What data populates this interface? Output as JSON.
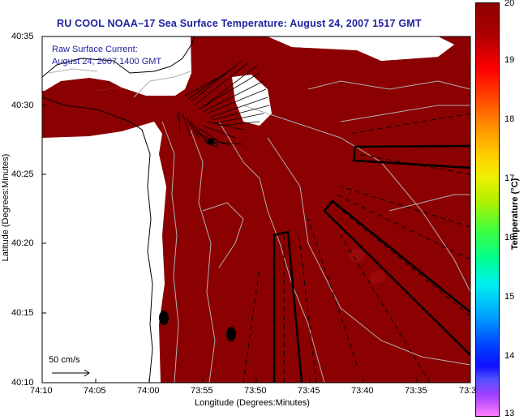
{
  "title": "RU COOL  NOAA–17  Sea Surface Temperature:  August 24, 2007 1517 GMT",
  "overlay": {
    "line1": "Raw Surface Current:",
    "line2": "August 24, 2007 1400 GMT"
  },
  "scale_label": "50 cm/s",
  "y_axis": {
    "label": "Latitude (Degrees:Minutes)",
    "ticks": [
      "40:35",
      "40:30",
      "40:25",
      "40:20",
      "40:15",
      "40:10"
    ]
  },
  "x_axis": {
    "label": "Longitude (Degrees:Minutes)",
    "ticks": [
      "74:10",
      "74:05",
      "74:00",
      "73:55",
      "73:50",
      "73:45",
      "73:40",
      "73:35",
      "73:3"
    ]
  },
  "colorbar": {
    "label": "Temperature (°C)",
    "ticks": [
      "20",
      "19",
      "18",
      "17",
      "16",
      "15",
      "14",
      "13"
    ],
    "min": 13,
    "max": 20
  },
  "colors": {
    "sst_fill": "#8b0000",
    "title_text": "#1f1fa0",
    "land": "#ffffff"
  }
}
